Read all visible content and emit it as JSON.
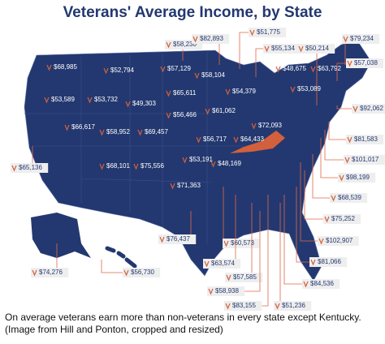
{
  "title": "Veterans' Average Income, by State",
  "labels": [
    "$68,985",
    "$52,794",
    "$57,129",
    "$58,230",
    "$82,893",
    "$51,775",
    "$55,134",
    "$50,214",
    "$79,234",
    "$48,675",
    "$63,792",
    "$57,038",
    "$58,104",
    "$53,589",
    "$53,732",
    "$49,303",
    "$65,611",
    "$54,379",
    "$53,089",
    "$92,062",
    "$56,466",
    "$61,062",
    "$66,617",
    "$58,952",
    "$69,457",
    "$72,093",
    "$81,583",
    "$64,433",
    "$56,717",
    "$65,136",
    "$68,101",
    "$75,556",
    "$53,191",
    "$48,169",
    "$101,017",
    "$98,199",
    "$71,363",
    "$68,539",
    "$75,252",
    "$76,437",
    "$60,573",
    "$102,907",
    "$63,574",
    "$81,066",
    "$74,276",
    "$56,730",
    "$57,585",
    "$84,536",
    "$58,938",
    "$83,155",
    "$51,236"
  ],
  "caption": "On average veterans earn more than non-veterans in every state except Kentucky. (Image from Hill and Ponton, cropped and resized)"
}
